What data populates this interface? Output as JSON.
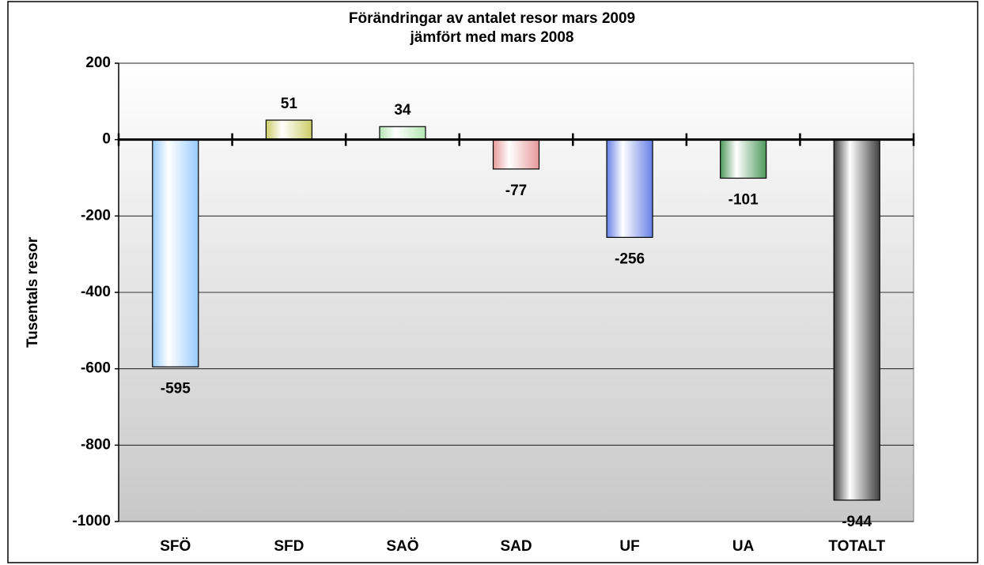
{
  "chart_data": {
    "type": "bar",
    "title": [
      "Förändringar av antalet resor mars 2009",
      "jämfört med mars 2008"
    ],
    "y_label": "Tusentals resor",
    "categories": [
      "SFÖ",
      "SFD",
      "SAÖ",
      "SAD",
      "UF",
      "UA",
      "TOTALT"
    ],
    "values": [
      -595,
      51,
      34,
      -77,
      -256,
      -101,
      -944
    ],
    "colors": [
      "#99ccff",
      "#cccc66",
      "#b3e6b3",
      "#e69999",
      "#6680e6",
      "#4d995c",
      "#404040"
    ],
    "ylim": [
      -1000,
      200
    ],
    "yticks": [
      200,
      0,
      -200,
      -400,
      -600,
      -800,
      -1000
    ],
    "grid": true
  }
}
